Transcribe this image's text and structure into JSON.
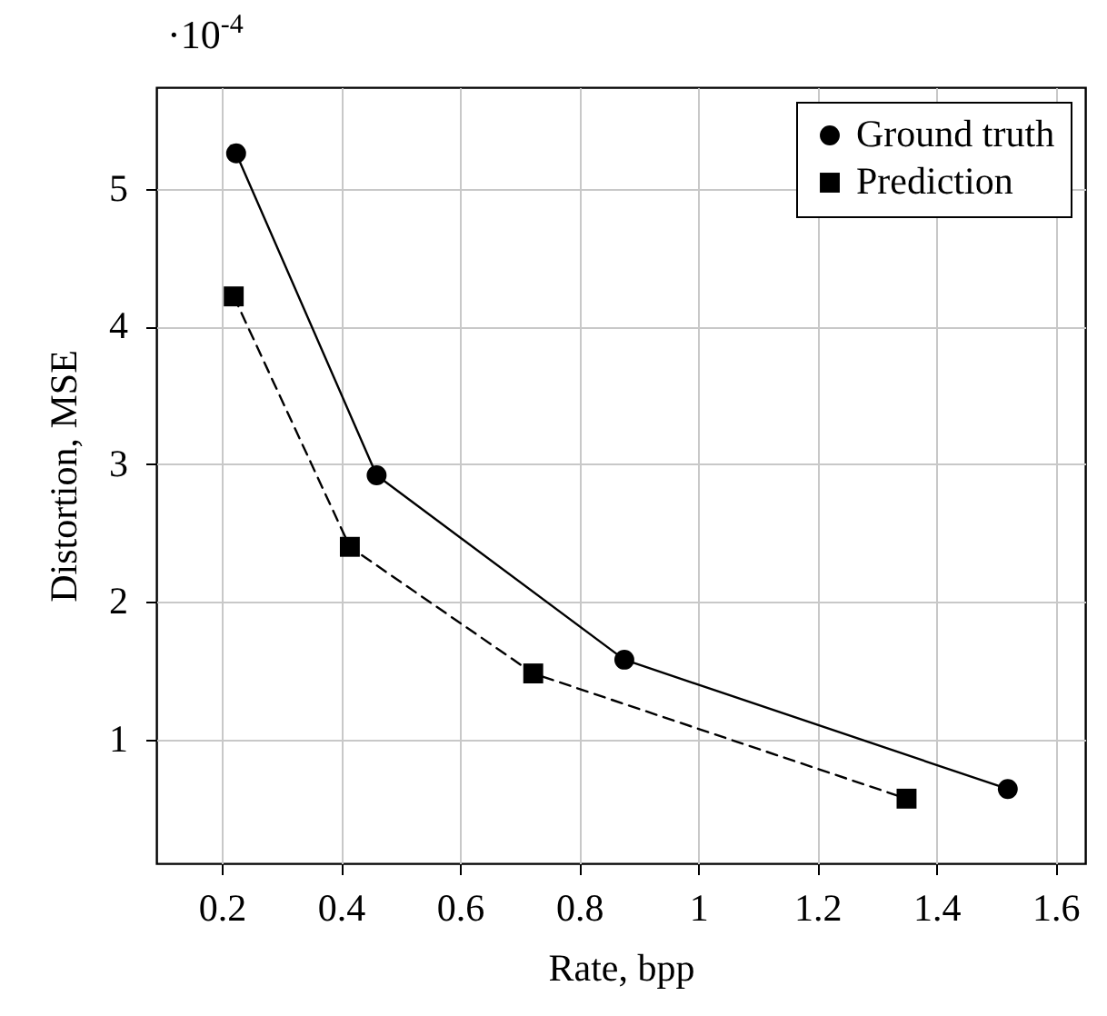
{
  "chart_data": {
    "type": "line",
    "xlabel": "Rate, bpp",
    "ylabel": "Distortion, MSE",
    "annotations": [
      "·10$^{-4}$"
    ],
    "xlim": [
      0.09,
      1.65
    ],
    "ylim": [
      0.1,
      5.74
    ],
    "xticks": [
      0.2,
      0.4,
      0.6,
      0.8,
      1,
      1.2,
      1.4,
      1.6
    ],
    "yticks": [
      1,
      2,
      3,
      4,
      5
    ],
    "grid": true,
    "legend": "top right",
    "series": [
      {
        "name": "Ground truth",
        "color": "#000000",
        "marker": "circle",
        "line_style": "solid",
        "x": [
          0.224,
          0.46,
          0.876,
          1.52
        ],
        "values": [
          5.26,
          2.92,
          1.58,
          0.64
        ]
      },
      {
        "name": "Prediction",
        "color": "#000000",
        "marker": "square",
        "line_style": "dashed",
        "x": [
          0.22,
          0.415,
          0.723,
          1.35
        ],
        "values": [
          4.22,
          2.4,
          1.48,
          0.57
        ]
      }
    ]
  }
}
